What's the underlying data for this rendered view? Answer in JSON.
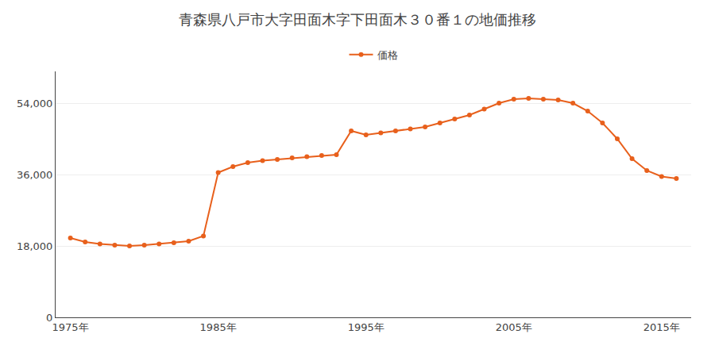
{
  "chart_data": {
    "type": "line",
    "title": "青森県八戸市大字田面木字下田面木３０番１の地価推移",
    "x": [
      1975,
      1976,
      1977,
      1978,
      1979,
      1980,
      1981,
      1982,
      1983,
      1984,
      1985,
      1986,
      1987,
      1988,
      1989,
      1990,
      1991,
      1992,
      1993,
      1994,
      1995,
      1996,
      1997,
      1998,
      1999,
      2000,
      2001,
      2002,
      2003,
      2004,
      2005,
      2006,
      2007,
      2008,
      2009,
      2010,
      2011,
      2012,
      2013,
      2014,
      2015,
      2016
    ],
    "series": [
      {
        "name": "価格",
        "color": "#e8601c",
        "marker": "circle",
        "line_style": "solid",
        "values": [
          20000,
          19000,
          18500,
          18200,
          18000,
          18200,
          18500,
          18800,
          19200,
          20500,
          36500,
          38000,
          39000,
          39500,
          39800,
          40200,
          40500,
          40800,
          41000,
          47000,
          46000,
          46500,
          47000,
          47500,
          48000,
          49000,
          50000,
          51000,
          52500,
          54000,
          55000,
          55200,
          55000,
          54800,
          54000,
          52000,
          49000,
          45000,
          40000,
          37000,
          35500,
          35000
        ]
      }
    ],
    "xlim": [
      1974,
      2017
    ],
    "xticks": [
      {
        "value": 1975,
        "label": "1975年"
      },
      {
        "value": 1985,
        "label": "1985年"
      },
      {
        "value": 1995,
        "label": "1995年"
      },
      {
        "value": 2005,
        "label": "2005年"
      },
      {
        "value": 2015,
        "label": "2015年"
      }
    ],
    "ylim": [
      0,
      62000
    ],
    "yticks": [
      0,
      {
        "value": 18000,
        "label": "18,000"
      },
      {
        "value": 36000,
        "label": "36,000"
      },
      {
        "value": 54000,
        "label": "54,000"
      }
    ],
    "grid": true,
    "legend": "top"
  }
}
